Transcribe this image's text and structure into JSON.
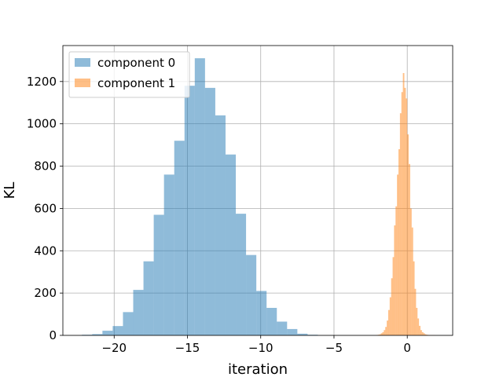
{
  "chart_data": {
    "type": "bar",
    "title": "",
    "xlabel": "iteration",
    "ylabel": "KL",
    "xlim": [
      -23.5,
      3.1
    ],
    "ylim": [
      0,
      1370
    ],
    "xticks": [
      -20,
      -15,
      -10,
      -5,
      0
    ],
    "xtick_labels": [
      "−20",
      "−15",
      "−10",
      "−5",
      "0"
    ],
    "yticks": [
      0,
      200,
      400,
      600,
      800,
      1000,
      1200
    ],
    "ytick_labels": [
      "0",
      "200",
      "400",
      "600",
      "800",
      "1000",
      "1200"
    ],
    "grid": true,
    "legend_position": "top-left",
    "series": [
      {
        "name": "component 0",
        "color": "#1f77b4",
        "opacity": 0.5,
        "bin_edges": [
          -22.2,
          -21.5,
          -20.8,
          -20.1,
          -19.4,
          -18.7,
          -18.0,
          -17.3,
          -16.6,
          -15.9,
          -15.2,
          -14.5,
          -13.8,
          -13.1,
          -12.4,
          -11.7,
          -11.0,
          -10.3,
          -9.6,
          -8.9,
          -8.2,
          -7.5,
          -6.8,
          -6.1
        ],
        "counts": [
          3,
          6,
          22,
          44,
          110,
          215,
          350,
          570,
          760,
          920,
          1180,
          1310,
          1170,
          1040,
          855,
          575,
          380,
          210,
          130,
          65,
          30,
          8,
          3
        ]
      },
      {
        "name": "component 1",
        "color": "#ff7f0e",
        "opacity": 0.5,
        "bin_edges": [
          -2.1,
          -2.0,
          -1.9,
          -1.8,
          -1.7,
          -1.6,
          -1.5,
          -1.4,
          -1.3,
          -1.2,
          -1.1,
          -1.0,
          -0.9,
          -0.8,
          -0.7,
          -0.6,
          -0.5,
          -0.4,
          -0.3,
          -0.2,
          -0.1,
          0.0,
          0.1,
          0.2,
          0.3,
          0.4,
          0.5,
          0.6,
          0.7,
          0.8,
          0.9,
          1.0,
          1.1,
          1.2,
          1.3,
          1.4,
          1.5,
          1.6,
          1.7,
          1.8,
          1.9
        ],
        "counts": [
          2,
          3,
          5,
          10,
          15,
          25,
          40,
          70,
          120,
          180,
          270,
          370,
          520,
          610,
          760,
          880,
          1050,
          1150,
          1240,
          1170,
          1120,
          950,
          810,
          600,
          510,
          350,
          220,
          130,
          80,
          45,
          25,
          15,
          10,
          5,
          3,
          2,
          1,
          1,
          1,
          1
        ]
      }
    ]
  }
}
